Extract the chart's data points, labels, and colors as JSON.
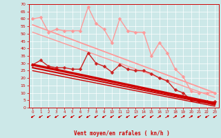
{
  "xlabel": "Vent moyen/en rafales ( kn/h )",
  "xlim": [
    -0.5,
    23.5
  ],
  "ylim": [
    0,
    70
  ],
  "yticks": [
    0,
    5,
    10,
    15,
    20,
    25,
    30,
    35,
    40,
    45,
    50,
    55,
    60,
    65,
    70
  ],
  "xticks": [
    0,
    1,
    2,
    3,
    4,
    5,
    6,
    7,
    8,
    9,
    10,
    11,
    12,
    13,
    14,
    15,
    16,
    17,
    18,
    19,
    20,
    21,
    22,
    23
  ],
  "bg_color": "#cce8e8",
  "grid_color": "#ffffff",
  "series": [
    {
      "name": "light_pink_data",
      "x": [
        0,
        1,
        2,
        3,
        4,
        5,
        6,
        7,
        8,
        9,
        10,
        11,
        12,
        13,
        14,
        15,
        16,
        17,
        18,
        19,
        20,
        21,
        22,
        23
      ],
      "y": [
        60,
        61,
        51,
        53,
        52,
        52,
        52,
        68,
        57,
        53,
        44,
        60,
        52,
        51,
        51,
        35,
        44,
        37,
        26,
        21,
        11,
        10,
        10,
        10
      ],
      "color": "#ff9999",
      "lw": 1.0,
      "marker": "D",
      "ms": 2.5
    },
    {
      "name": "light_pink_trend1",
      "x": [
        0,
        23
      ],
      "y": [
        56,
        10
      ],
      "color": "#ff9999",
      "lw": 1.3,
      "marker": null,
      "ms": 0
    },
    {
      "name": "light_pink_trend2",
      "x": [
        0,
        23
      ],
      "y": [
        51,
        7
      ],
      "color": "#ff9999",
      "lw": 1.0,
      "marker": null,
      "ms": 0
    },
    {
      "name": "dark_red_data",
      "x": [
        0,
        1,
        2,
        3,
        4,
        5,
        6,
        7,
        8,
        9,
        10,
        11,
        12,
        13,
        14,
        15,
        16,
        17,
        18,
        19,
        20,
        21,
        22,
        23
      ],
      "y": [
        29,
        32,
        28,
        27,
        27,
        26,
        26,
        37,
        30,
        28,
        24,
        29,
        26,
        25,
        25,
        23,
        20,
        18,
        12,
        10,
        5,
        4,
        4,
        4
      ],
      "color": "#cc2222",
      "lw": 1.0,
      "marker": "D",
      "ms": 2.5
    },
    {
      "name": "dark_red_trend1",
      "x": [
        0,
        23
      ],
      "y": [
        29,
        3
      ],
      "color": "#cc0000",
      "lw": 2.5,
      "marker": null,
      "ms": 0
    },
    {
      "name": "dark_red_trend2",
      "x": [
        0,
        23
      ],
      "y": [
        27,
        2
      ],
      "color": "#cc0000",
      "lw": 1.5,
      "marker": null,
      "ms": 0
    },
    {
      "name": "dark_red_trend3",
      "x": [
        0,
        23
      ],
      "y": [
        25,
        1
      ],
      "color": "#cc0000",
      "lw": 1.0,
      "marker": null,
      "ms": 0
    }
  ],
  "wind_x": [
    0,
    1,
    2,
    3,
    4,
    5,
    6,
    7,
    8,
    9,
    10,
    11,
    12,
    13,
    14,
    15,
    16,
    17,
    18,
    19,
    20,
    21,
    22,
    23
  ],
  "wind_angles": [
    225,
    225,
    225,
    225,
    225,
    225,
    225,
    225,
    225,
    225,
    225,
    225,
    225,
    225,
    225,
    225,
    45,
    45,
    45,
    45,
    45,
    225,
    225,
    225
  ]
}
